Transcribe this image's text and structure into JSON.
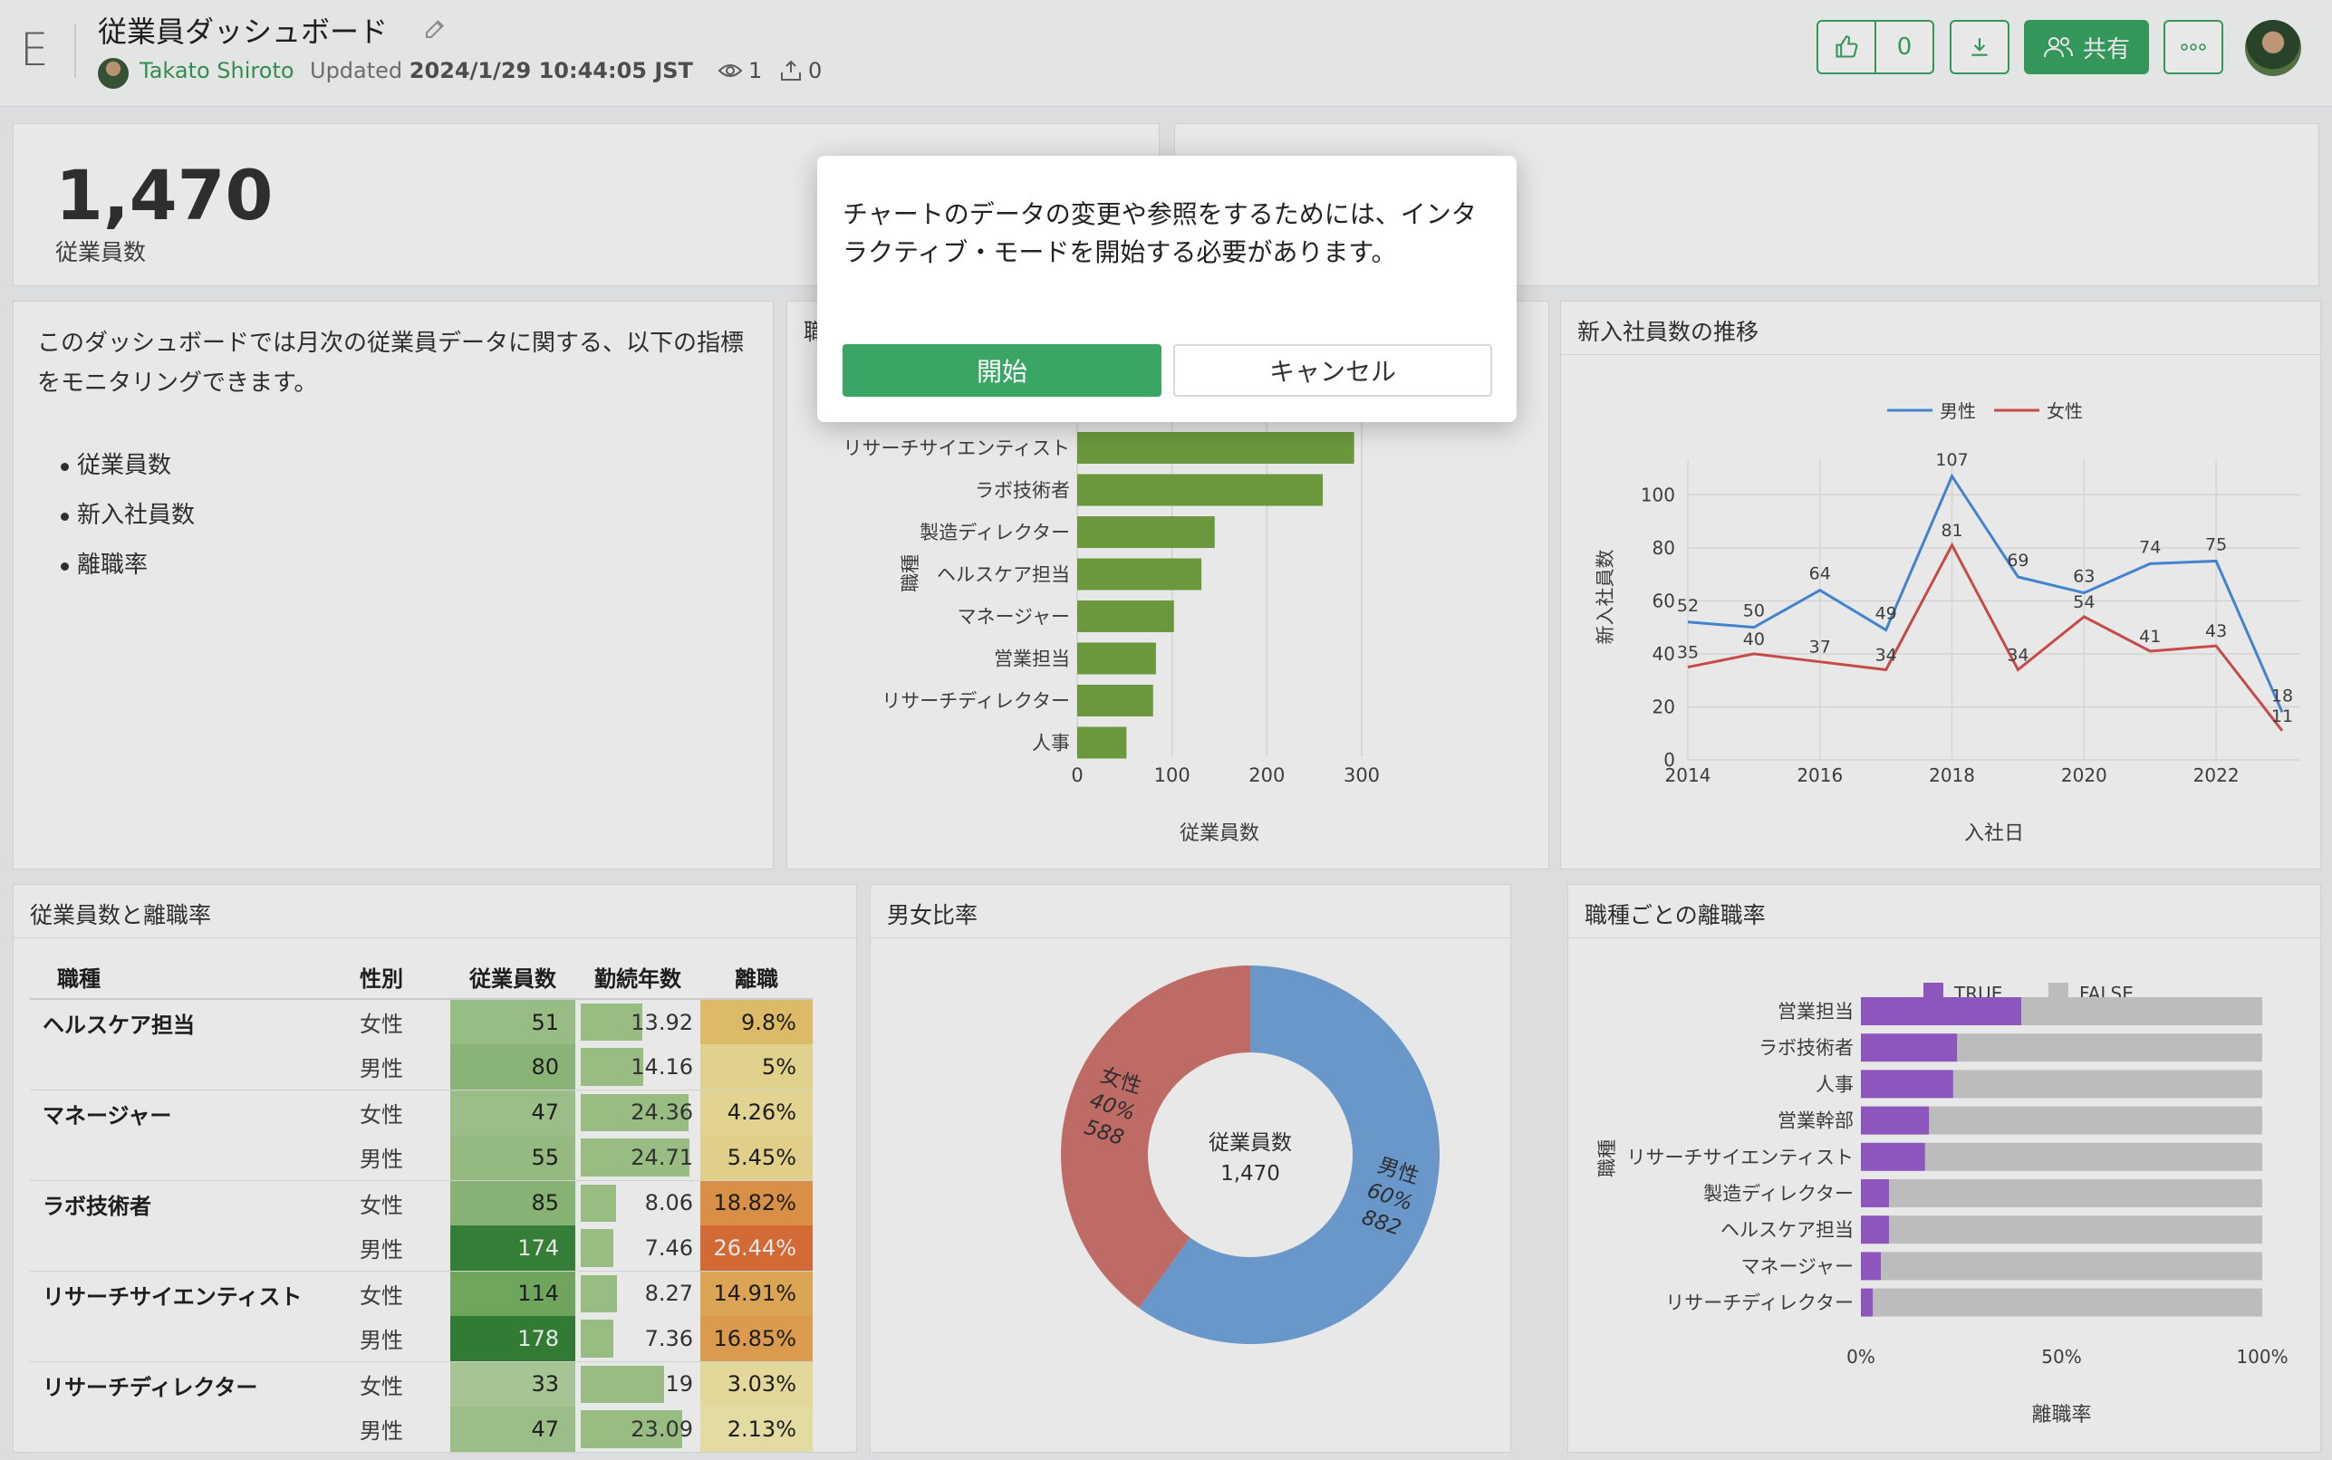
{
  "header": {
    "logo": "E",
    "title": "従業員ダッシュボード",
    "author": "Takato Shiroto",
    "updated_label": "Updated",
    "updated_value": "2024/1/29 10:44:05 JST",
    "views": "1",
    "exports": "0",
    "likes": "0",
    "share_label": "共有"
  },
  "kpi": {
    "value": "1,470",
    "label": "従業員数"
  },
  "description": {
    "text": "このダッシュボードでは月次の従業員データに関する、以下の指標をモニタリングできます。",
    "items": [
      "従業員数",
      "新入社員数",
      "離職率"
    ]
  },
  "panels": {
    "job_chart_title": "職",
    "hire_chart_title": "新入社員数の推移",
    "table_title": "従業員数と離職率",
    "donut_title": "男女比率",
    "attrition_title": "職種ごとの離職率"
  },
  "modal": {
    "message": "チャートのデータの変更や参照をするためには、インタラクティブ・モードを開始する必要があります。",
    "start_label": "開始",
    "cancel_label": "キャンセル"
  },
  "table": {
    "headers": [
      "職種",
      "性別",
      "従業員数",
      "勤続年数",
      "離職"
    ],
    "rows": [
      {
        "job": "ヘルスケア担当",
        "sex": "女性",
        "count": "51",
        "years": "13.92",
        "rate": "9.8%",
        "count_bg": "#a7cf92",
        "rate_bg": "#f3cd72",
        "yr_frac": 0.49
      },
      {
        "job": "",
        "sex": "男性",
        "count": "80",
        "years": "14.16",
        "rate": "5%",
        "count_bg": "#98c683",
        "rate_bg": "#f7e79c",
        "yr_frac": 0.5
      },
      {
        "job": "マネージャー",
        "sex": "女性",
        "count": "47",
        "years": "24.36",
        "rate": "4.26%",
        "count_bg": "#abd196",
        "rate_bg": "#f8ea9f",
        "yr_frac": 0.86
      },
      {
        "job": "",
        "sex": "男性",
        "count": "55",
        "years": "24.71",
        "rate": "5.45%",
        "count_bg": "#a3cd8e",
        "rate_bg": "#f7e398",
        "yr_frac": 0.87
      },
      {
        "job": "ラボ技術者",
        "sex": "女性",
        "count": "85",
        "years": "8.06",
        "rate": "18.82%",
        "count_bg": "#94c47f",
        "rate_bg": "#ef9f4e",
        "yr_frac": 0.28
      },
      {
        "job": "",
        "sex": "男性",
        "count": "174",
        "years": "7.46",
        "rate": "26.44%",
        "count_bg": "#3b8b3e",
        "rate_bg": "#e8743a",
        "yr_frac": 0.26
      },
      {
        "job": "リサーチサイエンティスト",
        "sex": "女性",
        "count": "114",
        "years": "8.27",
        "rate": "14.91%",
        "count_bg": "#7cb668",
        "rate_bg": "#f1b65e",
        "yr_frac": 0.29
      },
      {
        "job": "",
        "sex": "男性",
        "count": "178",
        "years": "7.36",
        "rate": "16.85%",
        "count_bg": "#38883b",
        "rate_bg": "#f0ab56",
        "yr_frac": 0.26
      },
      {
        "job": "リサーチディレクター",
        "sex": "女性",
        "count": "33",
        "years": "19",
        "rate": "3.03%",
        "count_bg": "#b7d8a3",
        "rate_bg": "#f9eeaa",
        "yr_frac": 0.67
      },
      {
        "job": "",
        "sex": "男性",
        "count": "47",
        "years": "23.09",
        "rate": "2.13%",
        "count_bg": "#abd196",
        "rate_bg": "#faf2b3",
        "yr_frac": 0.81
      }
    ]
  },
  "chart_data": [
    {
      "type": "bar",
      "orientation": "horizontal",
      "categories": [
        "リサーチサイエンティスト",
        "ラボ技術者",
        "製造ディレクター",
        "ヘルスケア担当",
        "マネージャー",
        "営業担当",
        "リサーチディレクター",
        "人事"
      ],
      "values": [
        292,
        259,
        145,
        131,
        102,
        83,
        80,
        52
      ],
      "xlabel": "従業員数",
      "ylabel": "職種",
      "xlim": [
        0,
        300
      ],
      "xticks": [
        "0",
        "100",
        "200",
        "300"
      ],
      "color": "#76a844"
    },
    {
      "type": "line",
      "title": "新入社員数の推移",
      "x": [
        2014,
        2015,
        2016,
        2017,
        2018,
        2019,
        2020,
        2021,
        2022,
        2023
      ],
      "xticks": [
        "2014",
        "2016",
        "2018",
        "2020",
        "2022"
      ],
      "yticks": [
        "0",
        "20",
        "40",
        "60",
        "80",
        "100"
      ],
      "ylim": [
        0,
        110
      ],
      "xlabel": "入社日",
      "ylabel": "新入社員数",
      "legend": "top-center",
      "series": [
        {
          "name": "男性",
          "color": "#4a90e2",
          "values": [
            52,
            50,
            64,
            49,
            107,
            69,
            63,
            74,
            75,
            18
          ]
        },
        {
          "name": "女性",
          "color": "#d9534f",
          "values": [
            35,
            40,
            37,
            34,
            81,
            34,
            54,
            41,
            43,
            11
          ]
        }
      ]
    },
    {
      "type": "pie",
      "title": "男女比率",
      "center_label": "従業員数",
      "center_value": "1,470",
      "slices": [
        {
          "name": "男性",
          "value": 882,
          "percent": "60%",
          "color": "#74a7de"
        },
        {
          "name": "女性",
          "value": 588,
          "percent": "40%",
          "color": "#d2766f"
        }
      ]
    },
    {
      "type": "bar",
      "orientation": "horizontal",
      "stacked": true,
      "title": "職種ごとの離職率",
      "categories": [
        "営業担当",
        "ラボ技術者",
        "人事",
        "営業幹部",
        "リサーチサイエンティスト",
        "製造ディレクター",
        "ヘルスケア担当",
        "マネージャー",
        "リサーチディレクター"
      ],
      "series": [
        {
          "name": "TRUE",
          "color": "#9b5fcf",
          "values": [
            0.4,
            0.24,
            0.23,
            0.17,
            0.16,
            0.07,
            0.07,
            0.05,
            0.03
          ]
        },
        {
          "name": "FALSE",
          "color": "#cfcfcf",
          "values": [
            0.6,
            0.76,
            0.77,
            0.83,
            0.84,
            0.93,
            0.93,
            0.95,
            0.97
          ]
        }
      ],
      "xticks": [
        "0%",
        "50%",
        "100%"
      ],
      "xlabel": "離職率",
      "ylabel": "職種"
    }
  ]
}
